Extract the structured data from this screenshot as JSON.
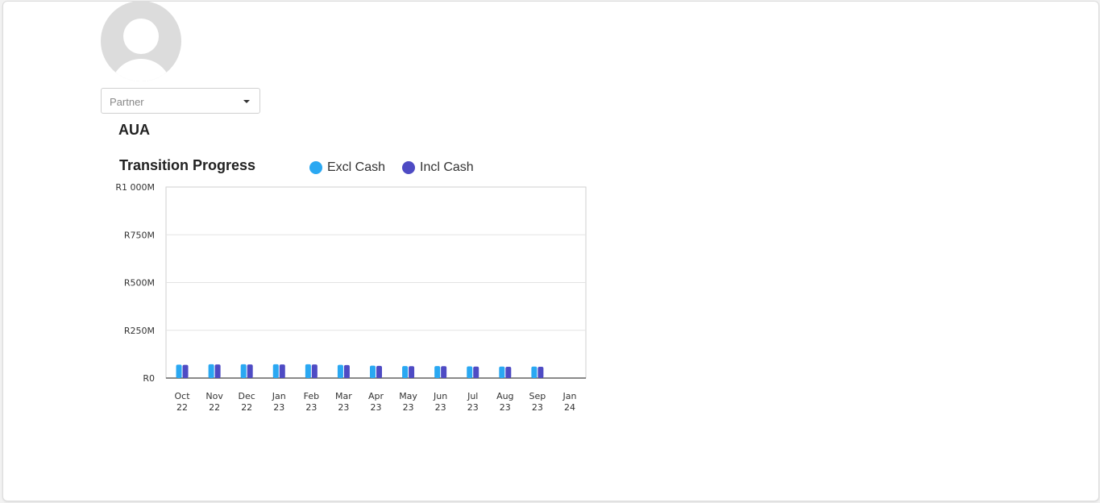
{
  "partner_select": {
    "placeholder": "Partner"
  },
  "section_title": "AUA",
  "chart_data": {
    "type": "bar",
    "title": "Transition Progress",
    "categories": [
      [
        "Oct",
        "22"
      ],
      [
        "Nov",
        "22"
      ],
      [
        "Dec",
        "22"
      ],
      [
        "Jan",
        "23"
      ],
      [
        "Feb",
        "23"
      ],
      [
        "Mar",
        "23"
      ],
      [
        "Apr",
        "23"
      ],
      [
        "May",
        "23"
      ],
      [
        "Jun",
        "23"
      ],
      [
        "Jul",
        "23"
      ],
      [
        "Aug",
        "23"
      ],
      [
        "Sep",
        "23"
      ],
      [
        "Jan",
        "24"
      ]
    ],
    "series": [
      {
        "name": "Excl Cash",
        "color": "#2aa8f2",
        "values": [
          70,
          72,
          72,
          72,
          72,
          69,
          65,
          63,
          63,
          61,
          60,
          60,
          null
        ]
      },
      {
        "name": "Incl Cash",
        "color": "#4e4bc4",
        "values": [
          69,
          71,
          71,
          71,
          71,
          68,
          64,
          62,
          62,
          60,
          59,
          59,
          null
        ]
      }
    ],
    "y_ticks": [
      "R0",
      "R250M",
      "R500M",
      "R750M",
      "R1 000M"
    ],
    "ylim": [
      0,
      1000
    ],
    "grid": true,
    "legend_position": "top"
  }
}
